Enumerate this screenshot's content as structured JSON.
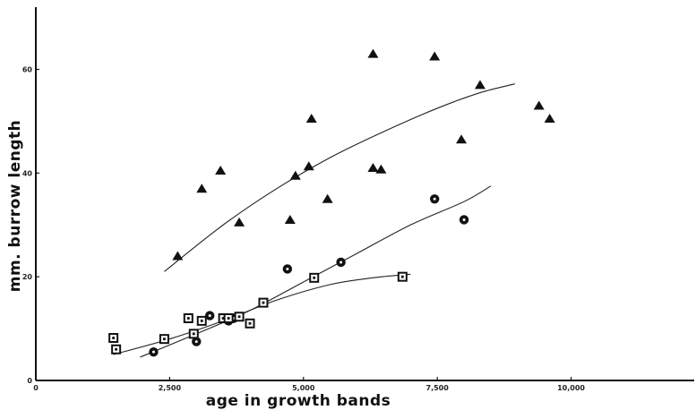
{
  "chart_data": {
    "type": "scatter",
    "title": "",
    "xlabel": "age in growth bands",
    "ylabel": "mm. burrow length",
    "xlim": [
      0,
      12300
    ],
    "ylim": [
      0,
      72
    ],
    "x_ticks": [
      0,
      2500,
      5000,
      7500,
      10000
    ],
    "x_tick_labels": [
      "0",
      "2,500",
      "5,000",
      "7,500",
      "10,000"
    ],
    "y_ticks": [
      0,
      20,
      40,
      60
    ],
    "y_tick_labels": [
      "0",
      "20",
      "40",
      "60"
    ],
    "grid": false,
    "legend": "none",
    "series": [
      {
        "marker": "triangle",
        "color": "#111111",
        "points": [
          [
            2650,
            24
          ],
          [
            3100,
            37
          ],
          [
            3450,
            40.5
          ],
          [
            3800,
            30.5
          ],
          [
            4750,
            31
          ],
          [
            4850,
            39.5
          ],
          [
            5100,
            41.3
          ],
          [
            5150,
            50.5
          ],
          [
            5450,
            35
          ],
          [
            6300,
            63
          ],
          [
            6300,
            41
          ],
          [
            6450,
            40.7
          ],
          [
            7450,
            62.5
          ],
          [
            7950,
            46.5
          ],
          [
            8300,
            57
          ],
          [
            9400,
            53
          ],
          [
            9600,
            50.5
          ]
        ],
        "trend": [
          [
            2400,
            21
          ],
          [
            3500,
            30
          ],
          [
            4500,
            37
          ],
          [
            5500,
            43
          ],
          [
            6500,
            48
          ],
          [
            7500,
            52.5
          ],
          [
            8300,
            55.5
          ],
          [
            8950,
            57.2
          ]
        ]
      },
      {
        "marker": "circle",
        "color": "#111111",
        "points": [
          [
            2200,
            5.5
          ],
          [
            3000,
            7.5
          ],
          [
            3250,
            12.5
          ],
          [
            3600,
            11.5
          ],
          [
            3700,
            12
          ],
          [
            4700,
            21.5
          ],
          [
            5700,
            22.8
          ],
          [
            7450,
            35
          ],
          [
            8000,
            31
          ]
        ],
        "trend": [
          [
            1950,
            4.5
          ],
          [
            3000,
            9
          ],
          [
            4000,
            13.5
          ],
          [
            5000,
            19
          ],
          [
            6000,
            24.5
          ],
          [
            7000,
            30
          ],
          [
            8000,
            34.5
          ],
          [
            8500,
            37.5
          ]
        ]
      },
      {
        "marker": "square",
        "color": "#111111",
        "points": [
          [
            1450,
            8.2
          ],
          [
            1500,
            6
          ],
          [
            2400,
            8
          ],
          [
            2850,
            12
          ],
          [
            2950,
            9
          ],
          [
            3100,
            11.5
          ],
          [
            3500,
            12
          ],
          [
            3600,
            12
          ],
          [
            3800,
            12.3
          ],
          [
            4000,
            11
          ],
          [
            4250,
            15
          ],
          [
            5200,
            19.8
          ],
          [
            6850,
            20
          ]
        ],
        "trend": [
          [
            1450,
            5
          ],
          [
            2500,
            8
          ],
          [
            3500,
            11.5
          ],
          [
            4500,
            15.5
          ],
          [
            5500,
            18.5
          ],
          [
            6300,
            19.8
          ],
          [
            7000,
            20.5
          ]
        ]
      }
    ]
  }
}
